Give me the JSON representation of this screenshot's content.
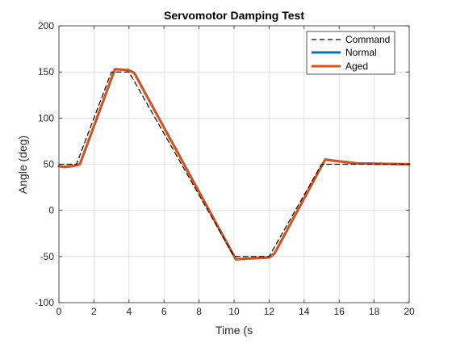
{
  "chart_data": {
    "type": "line",
    "title": "Servomotor Damping Test",
    "xlabel": "Time (s",
    "ylabel": "Angle (deg)",
    "xlim": [
      0,
      20
    ],
    "ylim": [
      -100,
      200
    ],
    "xticks": [
      0,
      2,
      4,
      6,
      8,
      10,
      12,
      14,
      16,
      18,
      20
    ],
    "yticks": [
      -100,
      -50,
      0,
      50,
      100,
      150,
      200
    ],
    "grid": true,
    "legend_position": "top-right",
    "series": [
      {
        "name": "Command",
        "color": "#000000",
        "style": "dashed",
        "x": [
          0,
          1,
          3,
          4,
          10,
          12,
          15,
          20
        ],
        "y": [
          50,
          50,
          150,
          150,
          -50,
          -50,
          50,
          50
        ]
      },
      {
        "name": "Normal",
        "color": "#0072BD",
        "style": "solid",
        "x": [
          0,
          0.3,
          0.8,
          1.2,
          3.2,
          4.0,
          4.3,
          10.1,
          12.0,
          12.3,
          15.2,
          15.6,
          17.0,
          20.0
        ],
        "y": [
          48,
          47,
          48,
          50,
          153,
          152,
          149,
          -53,
          -51,
          -47,
          55,
          54,
          51,
          50
        ]
      },
      {
        "name": "Aged",
        "color": "#D95319",
        "style": "solid",
        "x": [
          0,
          0.3,
          0.8,
          1.2,
          3.2,
          4.0,
          4.3,
          10.1,
          12.0,
          12.3,
          15.2,
          15.6,
          17.0,
          20.0
        ],
        "y": [
          48,
          47,
          48,
          50,
          153,
          152,
          149,
          -53,
          -51,
          -47,
          55,
          54,
          51,
          50
        ]
      }
    ]
  }
}
